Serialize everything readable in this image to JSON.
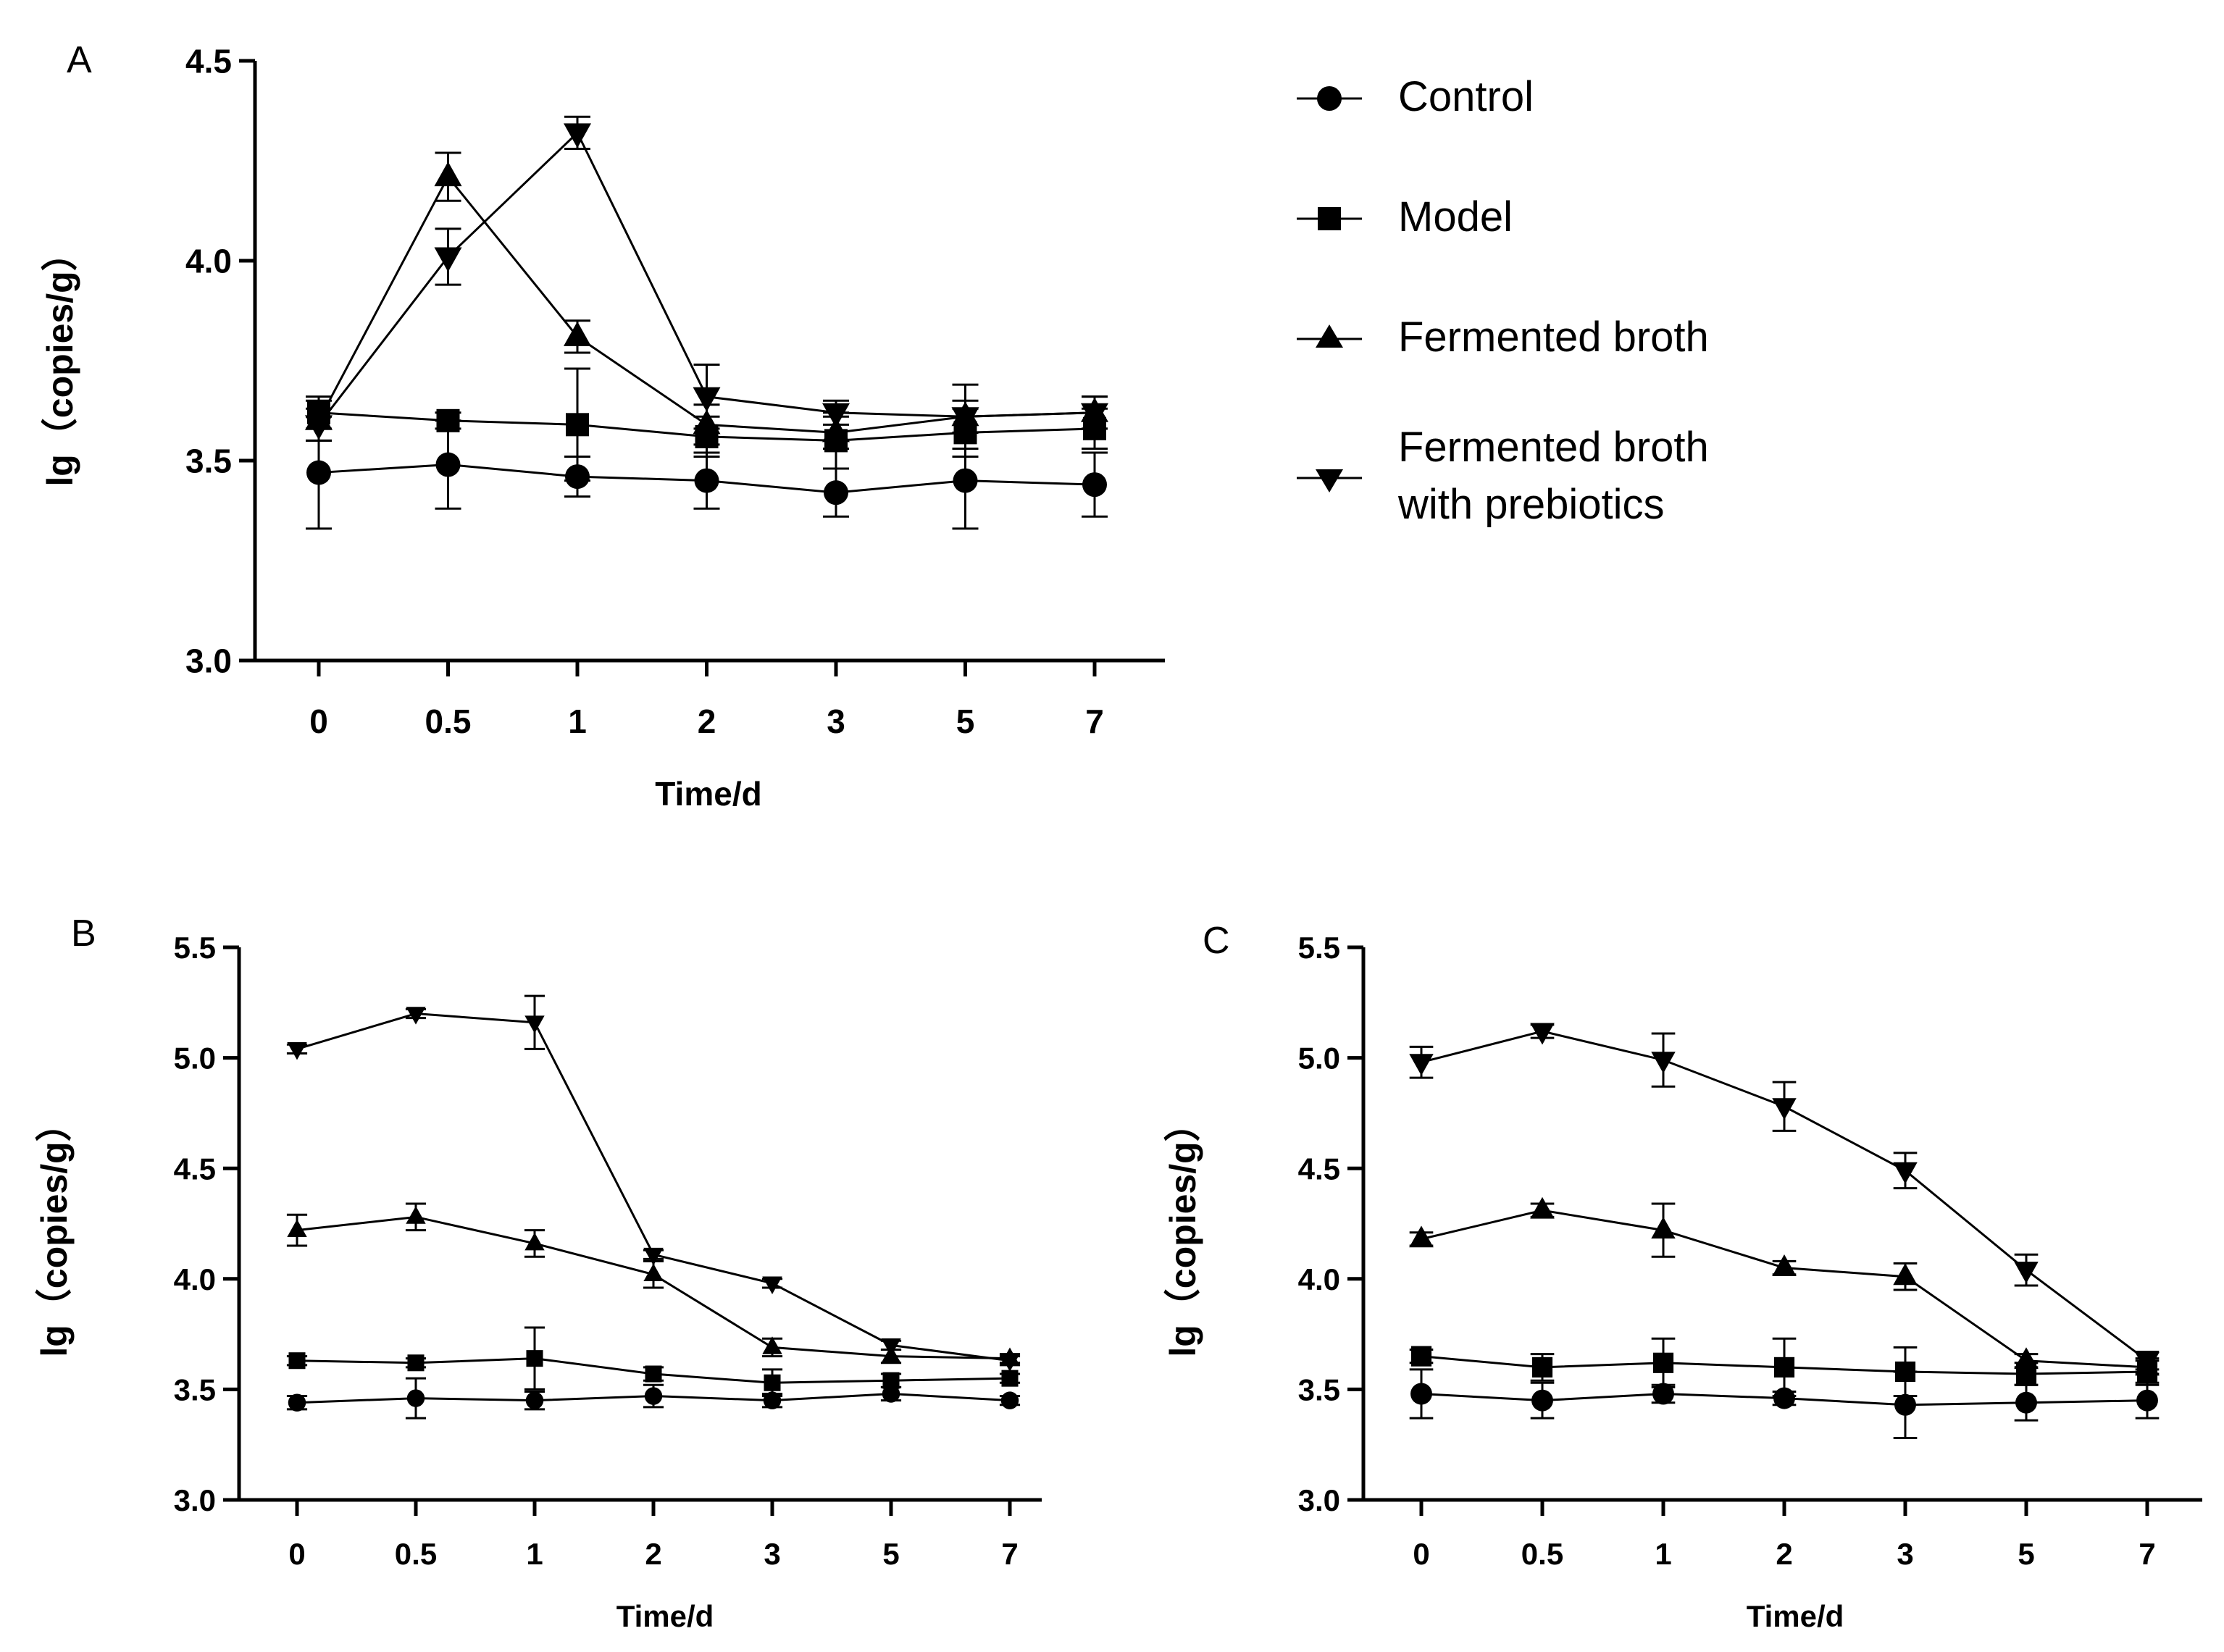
{
  "legend": [
    {
      "name": "Control",
      "marker": "circle"
    },
    {
      "name": "Model",
      "marker": "square"
    },
    {
      "name": "Fermented broth",
      "marker": "triangle-up"
    },
    {
      "name": "Fermented broth",
      "name_line2": "with prebiotics",
      "marker": "triangle-down"
    }
  ],
  "chart_data": [
    {
      "panel": "A",
      "type": "line",
      "categories": [
        "0",
        "0.5",
        "1",
        "2",
        "3",
        "5",
        "7"
      ],
      "xlabel": "Time/d",
      "ylabel": "lg（copies/g）",
      "ylim": [
        3.0,
        4.5
      ],
      "yticks": [
        "3.0",
        "3.5",
        "4.0",
        "4.5"
      ],
      "series": [
        {
          "name": "Control",
          "marker": "circle",
          "values": [
            3.47,
            3.49,
            3.46,
            3.45,
            3.42,
            3.45,
            3.44
          ],
          "errors": [
            0.14,
            0.11,
            0.05,
            0.07,
            0.06,
            0.12,
            0.08
          ]
        },
        {
          "name": "Model",
          "marker": "square",
          "values": [
            3.62,
            3.6,
            3.59,
            3.56,
            3.55,
            3.57,
            3.58
          ],
          "errors": [
            0.04,
            0.02,
            0.14,
            0.05,
            0.07,
            0.06,
            0.05
          ]
        },
        {
          "name": "Fermented broth",
          "marker": "triangle-up",
          "values": [
            3.6,
            4.21,
            3.81,
            3.59,
            3.57,
            3.61,
            3.62
          ],
          "errors": [
            0.05,
            0.06,
            0.04,
            0.05,
            0.04,
            0.04,
            0.04
          ]
        },
        {
          "name": "Fermented broth with prebiotics",
          "marker": "triangle-down",
          "values": [
            3.59,
            4.01,
            4.32,
            3.66,
            3.62,
            3.61,
            3.62
          ],
          "errors": [
            0.04,
            0.07,
            0.04,
            0.08,
            0.03,
            0.08,
            0.04
          ]
        }
      ]
    },
    {
      "panel": "B",
      "type": "line",
      "categories": [
        "0",
        "0.5",
        "1",
        "2",
        "3",
        "5",
        "7"
      ],
      "xlabel": "Time/d",
      "ylabel": "lg（copies/g）",
      "ylim": [
        3.0,
        5.5
      ],
      "yticks": [
        "3.0",
        "3.5",
        "4.0",
        "4.5",
        "5.0",
        "5.5"
      ],
      "series": [
        {
          "name": "Control",
          "marker": "circle",
          "values": [
            3.44,
            3.46,
            3.45,
            3.47,
            3.45,
            3.48,
            3.45
          ],
          "errors": [
            0.03,
            0.09,
            0.04,
            0.05,
            0.03,
            0.03,
            0.02
          ]
        },
        {
          "name": "Model",
          "marker": "square",
          "values": [
            3.63,
            3.62,
            3.64,
            3.57,
            3.53,
            3.54,
            3.55
          ],
          "errors": [
            0.02,
            0.02,
            0.14,
            0.03,
            0.06,
            0.03,
            0.02
          ]
        },
        {
          "name": "Fermented broth",
          "marker": "triangle-up",
          "values": [
            4.22,
            4.28,
            4.16,
            4.02,
            3.69,
            3.65,
            3.64
          ],
          "errors": [
            0.07,
            0.06,
            0.06,
            0.06,
            0.04,
            0.03,
            0.02
          ]
        },
        {
          "name": "Fermented broth with prebiotics",
          "marker": "triangle-down",
          "values": [
            5.04,
            5.2,
            5.16,
            4.11,
            3.98,
            3.7,
            3.63
          ],
          "errors": [
            0.02,
            0.02,
            0.12,
            0.02,
            0.02,
            0.02,
            0.02
          ]
        }
      ]
    },
    {
      "panel": "C",
      "type": "line",
      "categories": [
        "0",
        "0.5",
        "1",
        "2",
        "3",
        "5",
        "7"
      ],
      "xlabel": "Time/d",
      "ylabel": "lg（copies/g）",
      "ylim": [
        3.0,
        5.5
      ],
      "yticks": [
        "3.0",
        "3.5",
        "4.0",
        "4.5",
        "5.0",
        "5.5"
      ],
      "series": [
        {
          "name": "Control",
          "marker": "circle",
          "values": [
            3.48,
            3.45,
            3.48,
            3.46,
            3.43,
            3.44,
            3.45
          ],
          "errors": [
            0.11,
            0.08,
            0.04,
            0.03,
            0.15,
            0.08,
            0.08
          ]
        },
        {
          "name": "Model",
          "marker": "square",
          "values": [
            3.65,
            3.6,
            3.62,
            3.6,
            3.58,
            3.57,
            3.58
          ],
          "errors": [
            0.03,
            0.06,
            0.11,
            0.13,
            0.11,
            0.05,
            0.06
          ]
        },
        {
          "name": "Fermented broth",
          "marker": "triangle-up",
          "values": [
            4.18,
            4.31,
            4.22,
            4.05,
            4.01,
            3.63,
            3.6
          ],
          "errors": [
            0.03,
            0.03,
            0.12,
            0.03,
            0.06,
            0.03,
            0.03
          ]
        },
        {
          "name": "Fermented broth with prebiotics",
          "marker": "triangle-down",
          "values": [
            4.98,
            5.12,
            4.99,
            4.78,
            4.49,
            4.04,
            3.63
          ],
          "errors": [
            0.07,
            0.03,
            0.12,
            0.11,
            0.08,
            0.07,
            0.04
          ]
        }
      ]
    }
  ]
}
